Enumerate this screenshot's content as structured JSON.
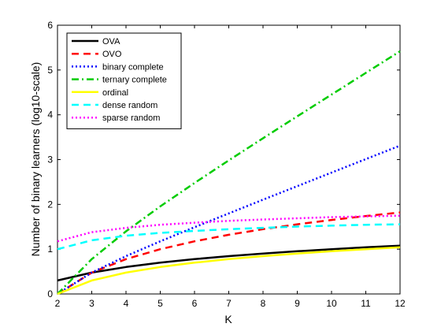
{
  "chart_data": {
    "type": "line",
    "title": "",
    "xlabel": "K",
    "ylabel": "Number of binary learners (log10-scale)",
    "xlim": [
      2,
      12
    ],
    "ylim": [
      0,
      6
    ],
    "xticks": [
      "2",
      "3",
      "4",
      "5",
      "6",
      "7",
      "8",
      "9",
      "10",
      "11",
      "12"
    ],
    "yticks": [
      "0",
      "1",
      "2",
      "3",
      "4",
      "5",
      "6"
    ],
    "grid": false,
    "legend_position": "top-left",
    "x": [
      2,
      3,
      4,
      5,
      6,
      7,
      8,
      9,
      10,
      11,
      12
    ],
    "series": [
      {
        "name": "OVA",
        "color": "#000000",
        "style": "solid",
        "values": [
          0.301,
          0.477,
          0.602,
          0.699,
          0.778,
          0.845,
          0.903,
          0.954,
          1.0,
          1.041,
          1.079
        ]
      },
      {
        "name": "OVO",
        "color": "#ff0000",
        "style": "dashed",
        "values": [
          0.0,
          0.477,
          0.778,
          1.0,
          1.176,
          1.322,
          1.447,
          1.556,
          1.653,
          1.74,
          1.82
        ]
      },
      {
        "name": "binary complete",
        "color": "#0000ff",
        "style": "dotted",
        "values": [
          0.0,
          0.477,
          0.845,
          1.176,
          1.491,
          1.799,
          2.104,
          2.407,
          2.709,
          3.01,
          3.312
        ]
      },
      {
        "name": "ternary complete",
        "color": "#00cc00",
        "style": "dashdot",
        "values": [
          0.0,
          0.778,
          1.398,
          1.954,
          2.477,
          2.982,
          3.477,
          3.966,
          4.452,
          4.936,
          5.419
        ]
      },
      {
        "name": "ordinal",
        "color": "#ffff00",
        "style": "solid",
        "values": [
          0.0,
          0.301,
          0.477,
          0.602,
          0.699,
          0.778,
          0.845,
          0.903,
          0.954,
          1.0,
          1.041
        ]
      },
      {
        "name": "dense random",
        "color": "#00ffff",
        "style": "dashed",
        "values": [
          1.0,
          1.199,
          1.301,
          1.363,
          1.408,
          1.447,
          1.477,
          1.505,
          1.525,
          1.544,
          1.556
        ]
      },
      {
        "name": "sparse random",
        "color": "#ff00ff",
        "style": "dotted",
        "values": [
          1.176,
          1.38,
          1.477,
          1.544,
          1.591,
          1.633,
          1.663,
          1.69,
          1.716,
          1.732,
          1.748
        ]
      }
    ]
  }
}
